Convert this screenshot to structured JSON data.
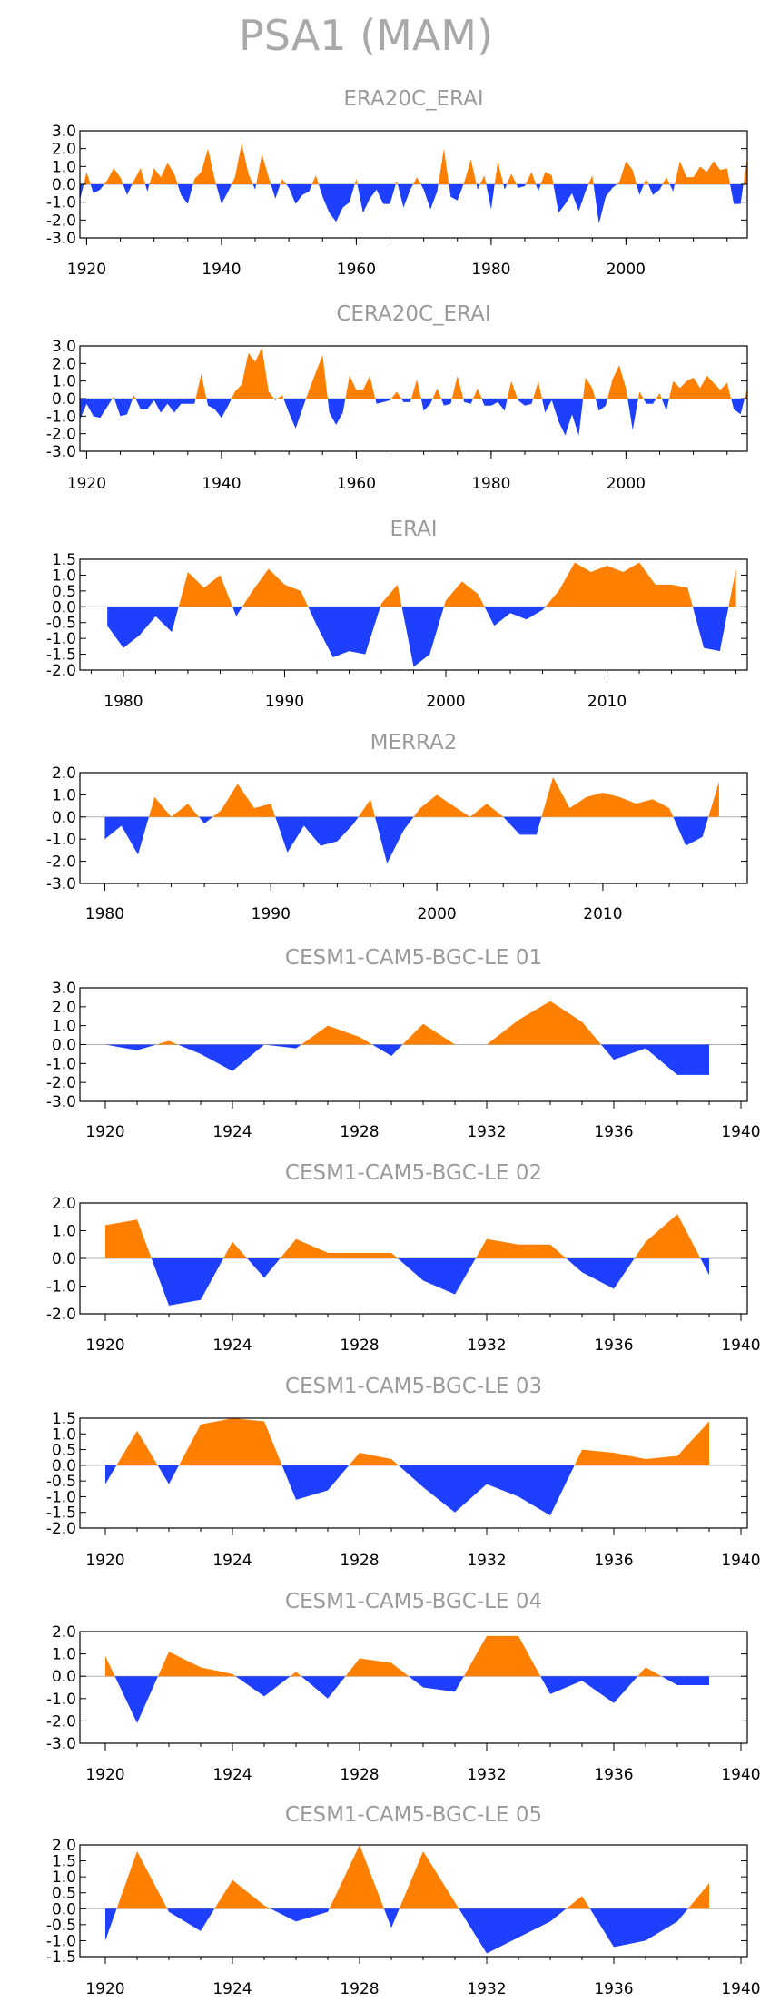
{
  "page_title": "PSA1 (MAM)",
  "colors": {
    "positive": "#ff8000",
    "negative": "#1f3fff",
    "frame": "#000000",
    "zero_line": "#b0b0b0",
    "title": "#9a9a9a"
  },
  "chart_data": [
    {
      "type": "area",
      "title": "ERA20C_ERAI",
      "ylim": [
        -3,
        3
      ],
      "yticks": [
        "3.0",
        "2.0",
        "1.0",
        "0.0",
        "-1.0",
        "-2.0",
        "-3.0"
      ],
      "ytick_values": [
        3,
        2,
        1,
        0,
        -1,
        -2,
        -3
      ],
      "xlim": [
        1919,
        2018
      ],
      "xticks": [
        1920,
        1940,
        1960,
        1980,
        2000
      ],
      "x_start": 1919,
      "values": [
        -0.9,
        0.7,
        -0.5,
        -0.3,
        0.2,
        0.9,
        0.4,
        -0.6,
        0.2,
        0.9,
        -0.4,
        0.9,
        0.4,
        1.2,
        0.6,
        -0.6,
        -1.1,
        0.3,
        0.7,
        2.0,
        0.3,
        -1.1,
        -0.4,
        0.4,
        2.3,
        0.6,
        -0.3,
        1.7,
        0.4,
        -0.8,
        0.3,
        -0.2,
        -1.1,
        -0.6,
        -0.4,
        0.5,
        -0.7,
        -1.6,
        -2.1,
        -1.3,
        -1.0,
        0.3,
        -1.6,
        -0.8,
        -0.3,
        -1.1,
        -1.1,
        0.2,
        -1.3,
        -0.3,
        0.4,
        -0.3,
        -1.4,
        -0.4,
        2.0,
        -0.7,
        -0.9,
        0.1,
        1.4,
        -0.3,
        0.5,
        -1.4,
        1.3,
        -0.3,
        0.6,
        -0.2,
        -0.1,
        0.7,
        -0.4,
        0.7,
        0.5,
        -1.6,
        -1.1,
        -0.5,
        -1.5,
        -0.4,
        0.5,
        -2.2,
        -0.7,
        -0.2,
        0.1,
        1.3,
        0.8,
        -0.6,
        0.3,
        -0.6,
        -0.3,
        0.4,
        -0.4,
        1.3,
        0.4,
        0.4,
        1.0,
        0.7,
        1.3,
        0.8,
        0.9,
        -1.1,
        -1.1,
        1.5
      ]
    },
    {
      "type": "area",
      "title": "CERA20C_ERAI",
      "ylim": [
        -3,
        3
      ],
      "yticks": [
        "3.0",
        "2.0",
        "1.0",
        "0.0",
        "-1.0",
        "-2.0",
        "-3.0"
      ],
      "ytick_values": [
        3,
        2,
        1,
        0,
        -1,
        -2,
        -3
      ],
      "xlim": [
        1919,
        2018
      ],
      "xticks": [
        1920,
        1940,
        1960,
        1980,
        2000
      ],
      "x_start": 1919,
      "values": [
        -1.2,
        -0.3,
        -1.0,
        -1.1,
        -0.5,
        0.1,
        -1.0,
        -0.9,
        0.2,
        -0.6,
        -0.6,
        -0.1,
        -0.8,
        -0.3,
        -0.8,
        -0.3,
        -0.3,
        -0.3,
        1.4,
        -0.4,
        -0.6,
        -1.1,
        -0.4,
        0.4,
        0.8,
        2.6,
        2.1,
        2.9,
        0.4,
        -0.1,
        0.2,
        -0.8,
        -1.7,
        -0.6,
        0.5,
        1.5,
        2.5,
        -0.8,
        -1.5,
        -0.8,
        1.3,
        0.5,
        0.5,
        1.3,
        -0.3,
        -0.2,
        -0.1,
        0.4,
        -0.2,
        -0.2,
        1.1,
        -0.7,
        -0.3,
        0.6,
        -0.4,
        -0.3,
        1.3,
        -0.2,
        -0.3,
        0.6,
        -0.4,
        -0.4,
        -0.2,
        -0.7,
        1.0,
        -0.1,
        -0.4,
        -0.3,
        1.0,
        -0.8,
        -0.1,
        -1.3,
        -2.1,
        -0.9,
        -2.1,
        1.2,
        0.6,
        -0.7,
        -0.4,
        1.1,
        1.9,
        0.6,
        -1.8,
        0.4,
        -0.3,
        -0.3,
        0.3,
        -0.7,
        1.0,
        0.6,
        1.0,
        1.2,
        0.6,
        1.3,
        0.9,
        0.5,
        0.9,
        -0.6,
        -0.9,
        0.6
      ]
    },
    {
      "type": "area",
      "title": "ERAI",
      "ylim": [
        -2,
        1.5
      ],
      "yticks": [
        "1.5",
        "1.0",
        "0.5",
        "0.0",
        "-0.5",
        "-1.0",
        "-1.5",
        "-2.0"
      ],
      "ytick_values": [
        1.5,
        1,
        0.5,
        0,
        -0.5,
        -1,
        -1.5,
        -2
      ],
      "xlim": [
        1977.3,
        2018.7
      ],
      "xticks": [
        1980,
        1990,
        2000,
        2010
      ],
      "x_start": 1979,
      "values": [
        -0.6,
        -1.3,
        -0.9,
        -0.3,
        -0.8,
        1.1,
        0.6,
        1.0,
        -0.3,
        0.5,
        1.2,
        0.7,
        0.5,
        -0.6,
        -1.6,
        -1.4,
        -1.5,
        0.1,
        0.7,
        -1.9,
        -1.5,
        0.2,
        0.8,
        0.4,
        -0.6,
        -0.2,
        -0.4,
        -0.1,
        0.5,
        1.4,
        1.1,
        1.3,
        1.1,
        1.4,
        0.7,
        0.7,
        0.6,
        -1.3,
        -1.4,
        1.2
      ]
    },
    {
      "type": "area",
      "title": "MERRA2",
      "ylim": [
        -3,
        2
      ],
      "yticks": [
        "2.0",
        "1.0",
        "0.0",
        "-1.0",
        "-2.0",
        "-3.0"
      ],
      "ytick_values": [
        2,
        1,
        0,
        -1,
        -2,
        -3
      ],
      "xlim": [
        1978.5,
        2018.7
      ],
      "xticks": [
        1980,
        1990,
        2000,
        2010
      ],
      "x_start": 1980,
      "values": [
        -1.0,
        -0.4,
        -1.7,
        0.9,
        0.0,
        0.6,
        -0.3,
        0.3,
        1.5,
        0.4,
        0.6,
        -1.6,
        -0.4,
        -1.3,
        -1.1,
        -0.3,
        0.8,
        -2.1,
        -0.6,
        0.4,
        1.0,
        0.5,
        0.0,
        0.6,
        0.0,
        -0.8,
        -0.8,
        1.8,
        0.4,
        0.9,
        1.1,
        0.9,
        0.6,
        0.8,
        0.4,
        -1.3,
        -0.9,
        1.6
      ]
    },
    {
      "type": "area",
      "title": "CESM1-CAM5-BGC-LE 01",
      "ylim": [
        -3,
        3
      ],
      "yticks": [
        "3.0",
        "2.0",
        "1.0",
        "0.0",
        "-1.0",
        "-2.0",
        "-3.0"
      ],
      "ytick_values": [
        3,
        2,
        1,
        0,
        -1,
        -2,
        -3
      ],
      "xlim": [
        1919.2,
        1940.2
      ],
      "xticks": [
        1920,
        1924,
        1928,
        1932,
        1936,
        1940
      ],
      "x_start": 1920,
      "values": [
        0.0,
        -0.3,
        0.2,
        -0.5,
        -1.4,
        0.0,
        -0.2,
        1.0,
        0.4,
        -0.6,
        1.1,
        0.0,
        0.0,
        1.3,
        2.3,
        1.2,
        -0.8,
        -0.2,
        -1.6,
        -1.6
      ]
    },
    {
      "type": "area",
      "title": "CESM1-CAM5-BGC-LE 02",
      "ylim": [
        -2,
        2
      ],
      "yticks": [
        "2.0",
        "1.0",
        "0.0",
        "-1.0",
        "-2.0"
      ],
      "ytick_values": [
        2,
        1,
        0,
        -1,
        -2
      ],
      "xlim": [
        1919.2,
        1940.2
      ],
      "xticks": [
        1920,
        1924,
        1928,
        1932,
        1936,
        1940
      ],
      "x_start": 1920,
      "values": [
        1.2,
        1.4,
        -1.7,
        -1.5,
        0.6,
        -0.7,
        0.7,
        0.2,
        0.2,
        0.2,
        -0.8,
        -1.3,
        0.7,
        0.5,
        0.5,
        -0.5,
        -1.1,
        0.6,
        1.6,
        -0.6
      ]
    },
    {
      "type": "area",
      "title": "CESM1-CAM5-BGC-LE 03",
      "ylim": [
        -2,
        1.5
      ],
      "yticks": [
        "1.5",
        "1.0",
        "0.5",
        "0.0",
        "-0.5",
        "-1.0",
        "-1.5",
        "-2.0"
      ],
      "ytick_values": [
        1.5,
        1,
        0.5,
        0,
        -0.5,
        -1,
        -1.5,
        -2
      ],
      "xlim": [
        1919.2,
        1940.2
      ],
      "xticks": [
        1920,
        1924,
        1928,
        1932,
        1936,
        1940
      ],
      "x_start": 1920,
      "values": [
        -0.6,
        1.1,
        -0.6,
        1.3,
        1.5,
        1.4,
        -1.1,
        -0.8,
        0.4,
        0.2,
        -0.7,
        -1.5,
        -0.6,
        -1.0,
        -1.6,
        0.5,
        0.4,
        0.2,
        0.3,
        1.4
      ]
    },
    {
      "type": "area",
      "title": "CESM1-CAM5-BGC-LE 04",
      "ylim": [
        -3,
        2
      ],
      "yticks": [
        "2.0",
        "1.0",
        "0.0",
        "-1.0",
        "-2.0",
        "-3.0"
      ],
      "ytick_values": [
        2,
        1,
        0,
        -1,
        -2,
        -3
      ],
      "xlim": [
        1919.2,
        1940.2
      ],
      "xticks": [
        1920,
        1924,
        1928,
        1932,
        1936,
        1940
      ],
      "x_start": 1920,
      "values": [
        0.9,
        -2.1,
        1.1,
        0.4,
        0.1,
        -0.9,
        0.2,
        -1.0,
        0.8,
        0.6,
        -0.5,
        -0.7,
        1.8,
        1.8,
        -0.8,
        -0.2,
        -1.2,
        0.4,
        -0.4,
        -0.4
      ]
    },
    {
      "type": "area",
      "title": "CESM1-CAM5-BGC-LE 05",
      "ylim": [
        -1.5,
        2
      ],
      "yticks": [
        "2.0",
        "1.5",
        "1.0",
        "0.5",
        "0.0",
        "-0.5",
        "-1.0",
        "-1.5"
      ],
      "ytick_values": [
        2,
        1.5,
        1,
        0.5,
        0,
        -0.5,
        -1,
        -1.5
      ],
      "xlim": [
        1919.2,
        1940.2
      ],
      "xticks": [
        1920,
        1924,
        1928,
        1932,
        1936,
        1940
      ],
      "x_start": 1920,
      "values": [
        -1.0,
        1.8,
        -0.1,
        -0.7,
        0.9,
        0.1,
        -0.4,
        -0.1,
        2.0,
        -0.6,
        1.8,
        0.2,
        -1.4,
        -0.9,
        -0.4,
        0.4,
        -1.2,
        -1.0,
        -0.4,
        0.8
      ]
    }
  ]
}
